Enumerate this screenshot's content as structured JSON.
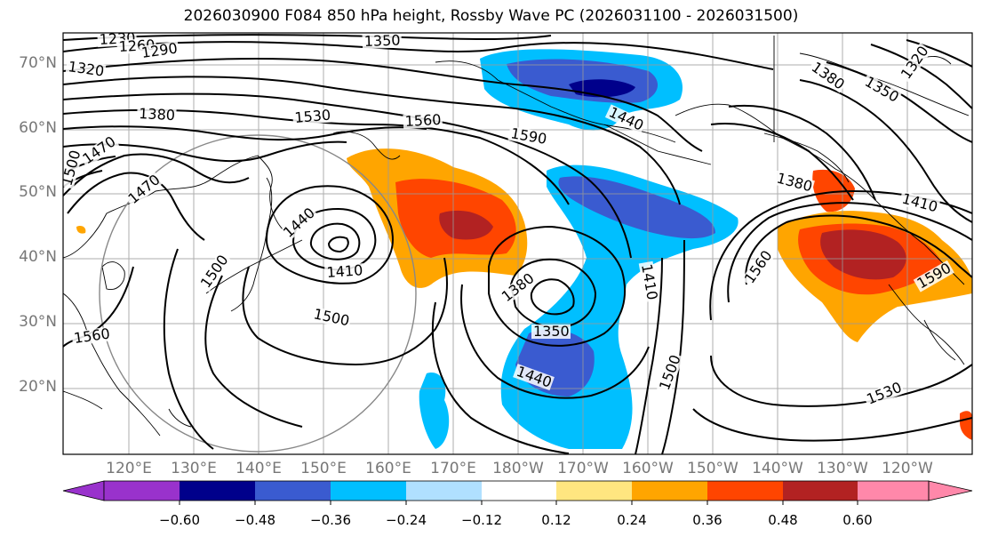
{
  "title": "2026030900 F084 850 hPa height, Rossby Wave PC (2026031100 - 2026031500)",
  "lat_labels": [
    "70°N",
    "60°N",
    "50°N",
    "40°N",
    "30°N",
    "20°N"
  ],
  "lon_labels": [
    "120°E",
    "130°E",
    "140°E",
    "150°E",
    "160°E",
    "170°E",
    "180°W",
    "170°W",
    "160°W",
    "150°W",
    "140°W",
    "130°W",
    "120°W"
  ],
  "colorbar": {
    "ticks": [
      "−0.60",
      "−0.48",
      "−0.36",
      "−0.24",
      "−0.12",
      "0.12",
      "0.24",
      "0.36",
      "0.48",
      "0.60"
    ],
    "colors": [
      "#9932cc",
      "#00008b",
      "#3a5bd0",
      "#00bfff",
      "#b0e0ff",
      "#ffffff",
      "#ffe680",
      "#ffa500",
      "#ff4500",
      "#b22222",
      "#ff88aa"
    ]
  },
  "contour_labels": [
    "1230",
    "1260",
    "1290",
    "1320",
    "1350",
    "1380",
    "1410",
    "1440",
    "1470",
    "1500",
    "1530",
    "1560",
    "1590"
  ],
  "contour_label_marks": [
    "1230",
    "1260",
    "1290",
    "1320",
    "1350",
    "1380",
    "1470",
    "1500",
    "1470",
    "1440",
    "1410",
    "1500",
    "1500",
    "1560",
    "1530",
    "1560",
    "1590",
    "1380",
    "1350",
    "1440",
    "1410",
    "1500",
    "1440",
    "1380",
    "1410",
    "1320",
    "1380",
    "1350",
    "1560",
    "1590",
    "1530"
  ]
}
